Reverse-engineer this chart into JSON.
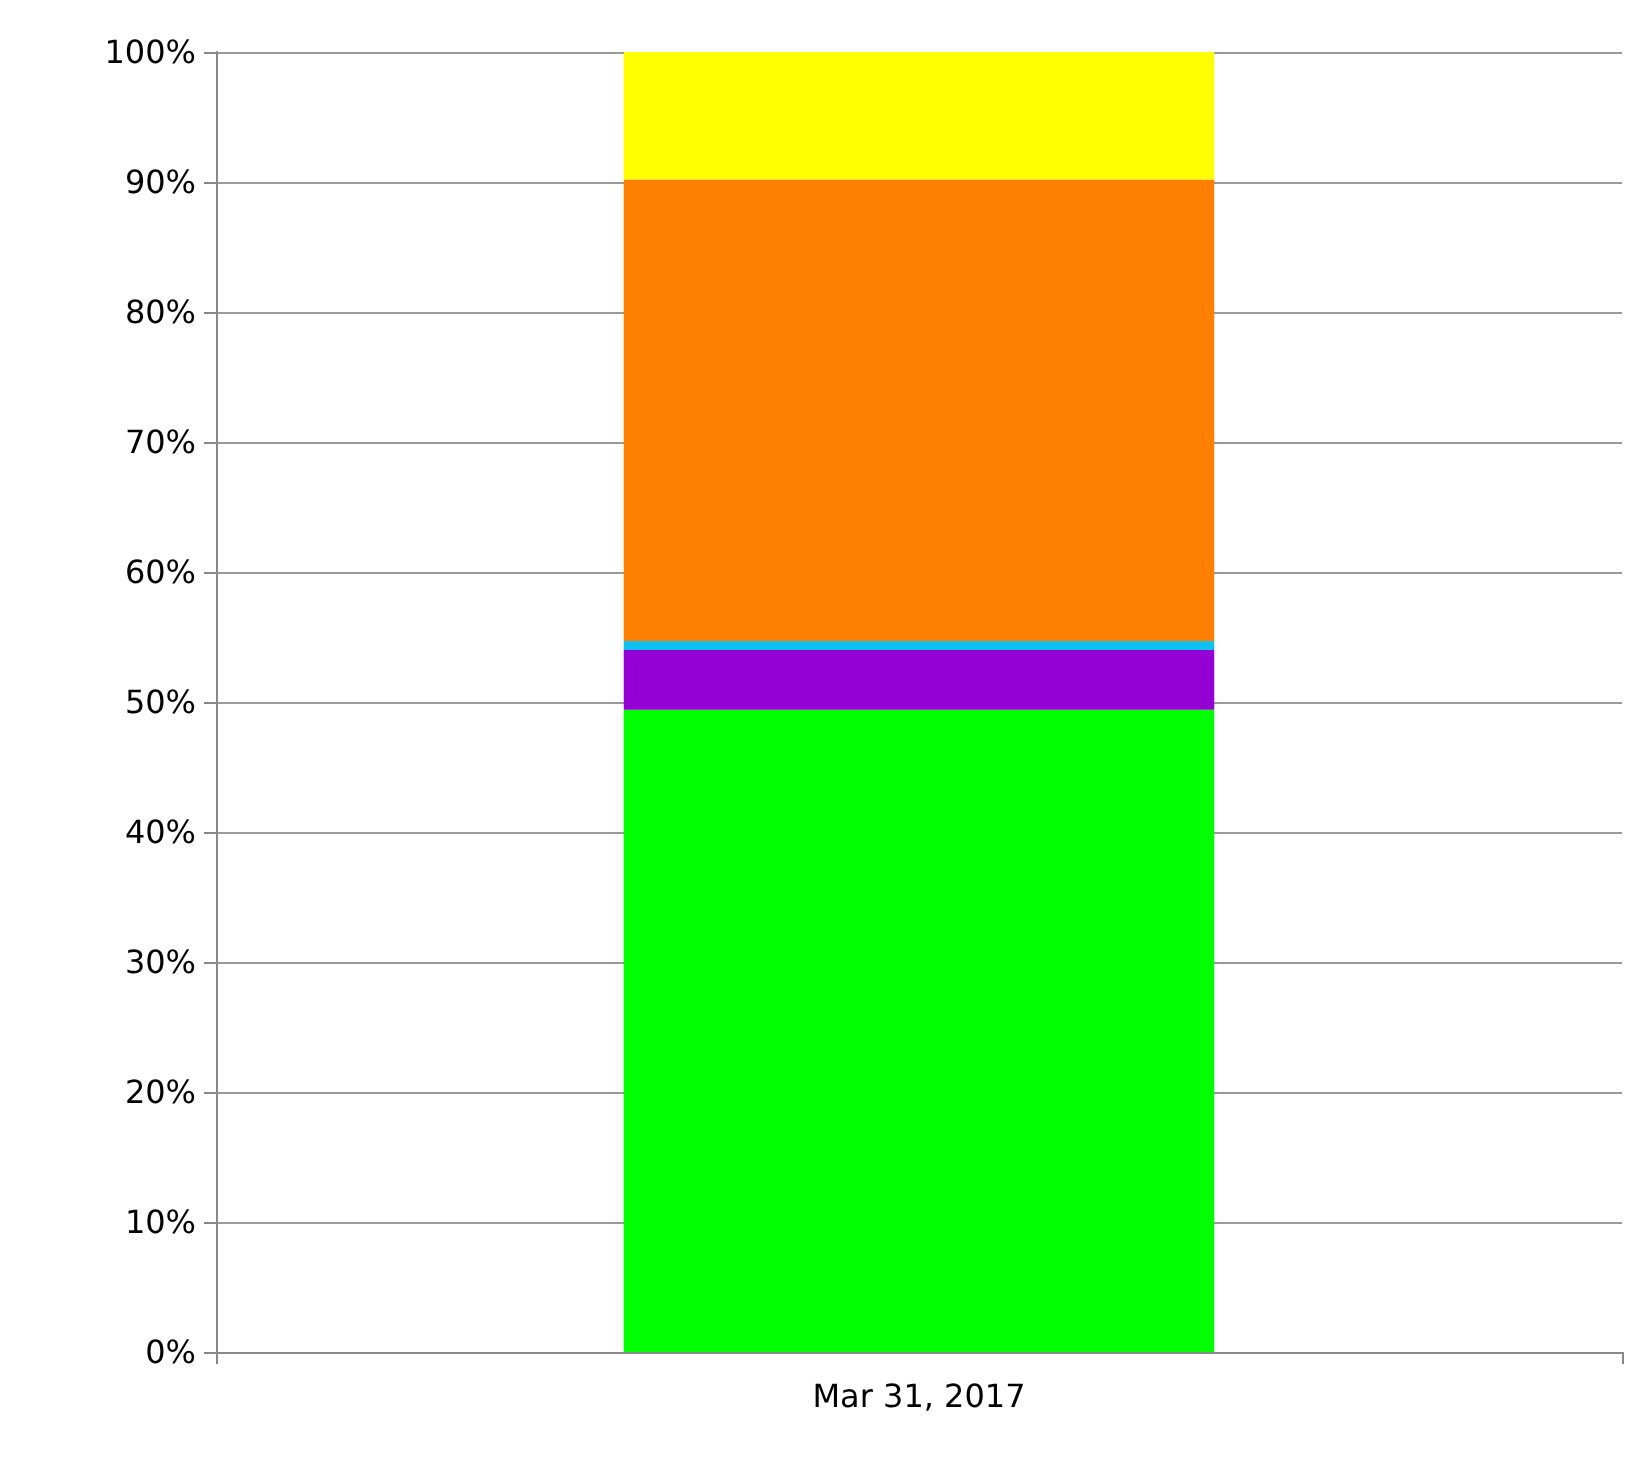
{
  "chart_data": {
    "type": "bar",
    "stacked": true,
    "categories": [
      "Mar 31, 2017"
    ],
    "series": [
      {
        "color": "#00ff00",
        "values": [
          49.4
        ]
      },
      {
        "color": "#9400d3",
        "values": [
          4.6
        ]
      },
      {
        "color": "#10c0f0",
        "values": [
          0.7
        ]
      },
      {
        "color": "#ff8000",
        "values": [
          35.5
        ]
      },
      {
        "color": "#ffff00",
        "values": [
          9.8
        ]
      }
    ],
    "ylim": [
      0,
      100
    ],
    "yticks": [
      {
        "value": 0,
        "label": "0%"
      },
      {
        "value": 10,
        "label": "10%"
      },
      {
        "value": 20,
        "label": "20%"
      },
      {
        "value": 30,
        "label": "30%"
      },
      {
        "value": 40,
        "label": "40%"
      },
      {
        "value": 50,
        "label": "50%"
      },
      {
        "value": 60,
        "label": "60%"
      },
      {
        "value": 70,
        "label": "70%"
      },
      {
        "value": 80,
        "label": "80%"
      },
      {
        "value": 90,
        "label": "90%"
      },
      {
        "value": 100,
        "label": "100%"
      }
    ],
    "grid": "y"
  }
}
